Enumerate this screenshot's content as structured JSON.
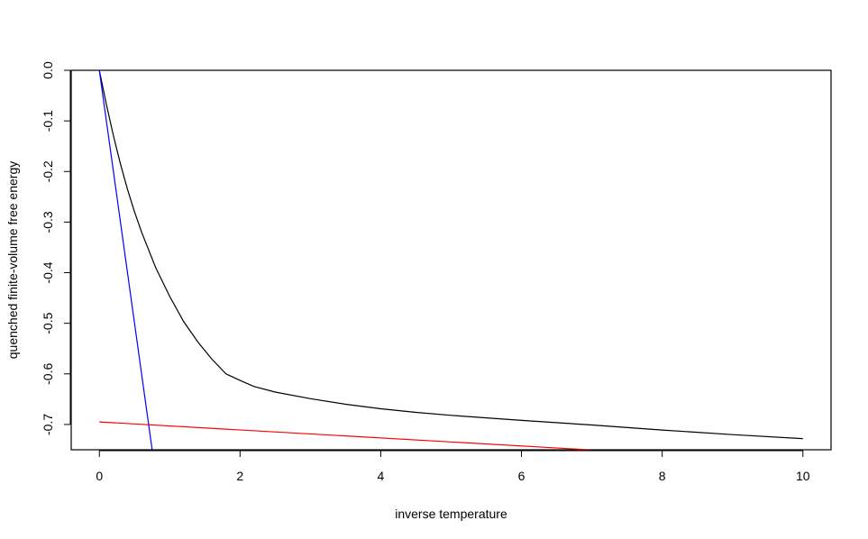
{
  "chart_data": {
    "type": "line",
    "title": "",
    "xlabel": "inverse temperature",
    "ylabel": "quenched finite-volume free energy",
    "xlim": [
      -0.4,
      10.4
    ],
    "ylim": [
      -0.75,
      0.0
    ],
    "x_ticks": [
      0,
      2,
      4,
      6,
      8,
      10
    ],
    "x_tick_labels": [
      "0",
      "2",
      "4",
      "6",
      "8",
      "10"
    ],
    "y_ticks": [
      0.0,
      -0.1,
      -0.2,
      -0.3,
      -0.4,
      -0.5,
      -0.6,
      -0.7
    ],
    "y_tick_labels": [
      "0.0",
      "-0.1",
      "-0.2",
      "-0.3",
      "-0.4",
      "-0.5",
      "-0.6",
      "-0.7"
    ],
    "grid": false,
    "legend": "none",
    "series": [
      {
        "color": "#000000",
        "x": [
          0,
          0.1,
          0.2,
          0.3,
          0.4,
          0.5,
          0.6,
          0.8,
          1.0,
          1.2,
          1.4,
          1.6,
          1.8,
          2.0,
          2.2,
          2.5,
          3.0,
          3.5,
          4.0,
          4.5,
          5.0,
          6.0,
          7.0,
          8.0,
          9.0,
          10.0
        ],
        "y": [
          0.0,
          -0.067,
          -0.129,
          -0.185,
          -0.235,
          -0.28,
          -0.32,
          -0.39,
          -0.447,
          -0.497,
          -0.537,
          -0.571,
          -0.6,
          -0.613,
          -0.625,
          -0.636,
          -0.649,
          -0.66,
          -0.669,
          -0.676,
          -0.682,
          -0.692,
          -0.701,
          -0.711,
          -0.72,
          -0.728
        ]
      },
      {
        "color": "#0000ff",
        "x": [
          0,
          0.75
        ],
        "y": [
          0.0,
          -0.75
        ]
      },
      {
        "color": "#ff0000",
        "x": [
          0,
          6.95
        ],
        "y": [
          -0.695,
          -0.75
        ]
      }
    ]
  }
}
